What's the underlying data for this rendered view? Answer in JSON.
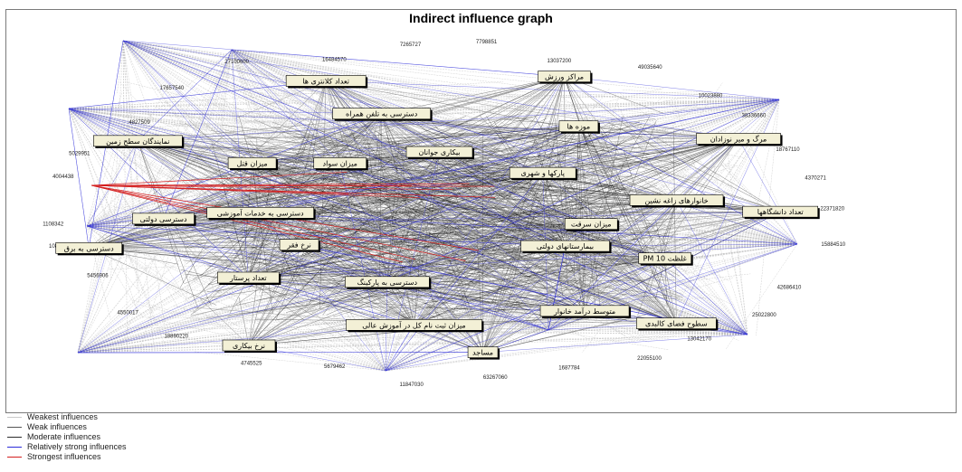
{
  "title": "Indirect influence graph",
  "legend": [
    {
      "label": "Weakest influences",
      "color": "#c9c9c9"
    },
    {
      "label": "Weak influences",
      "color": "#555555"
    },
    {
      "label": "Moderate influences",
      "color": "#2b2b2b"
    },
    {
      "label": "Relatively strong influences",
      "color": "#2b2bd9"
    },
    {
      "label": "Strongest influences",
      "color": "#d41f1f"
    }
  ],
  "nodes": [
    "تعداد دانشگاهها",
    "متوسط درآمد خانوار",
    "دسترسی به پارکینگ",
    "سطوح فضای کالبدی",
    "میزان ثبت نام کل در آموزش عالی",
    "نرخ فقر",
    "مساجد",
    "تعداد پرستار",
    "دسترسی به خدمات آموزشی",
    "نرخ بیکاری",
    "دسترسی دولتی",
    "میزان سواد",
    "دسترسی به برق",
    "میزان قتل",
    "بیکاری جوانان",
    "نمایندگان سطح زمین",
    "دسترسی به تلفن همراه",
    "پارکها و شهری",
    "تعداد کلانتری ها",
    "موزه ها",
    "میزان سرقت",
    "مراکز ورزش",
    "خانوارهای زاغه نشین",
    "بیمارستانهای دولتی",
    "مرگ و میر نوزادان",
    "PM 10 غلظت"
  ],
  "numbers": [
    "22371820",
    "15884510",
    "42686410",
    "25022800",
    "13042170",
    "22055100",
    "1687784",
    "63267060",
    "11847030",
    "5679462",
    "4745525",
    "18890220",
    "4550017",
    "5456906",
    "10823150",
    "1108342",
    "4004438",
    "5029951",
    "4827509",
    "17657540",
    "27100600",
    "16484570",
    "7265727",
    "7798851",
    "13037200",
    "49035640",
    "10023880",
    "38336660",
    "18767110",
    "4370271"
  ]
}
